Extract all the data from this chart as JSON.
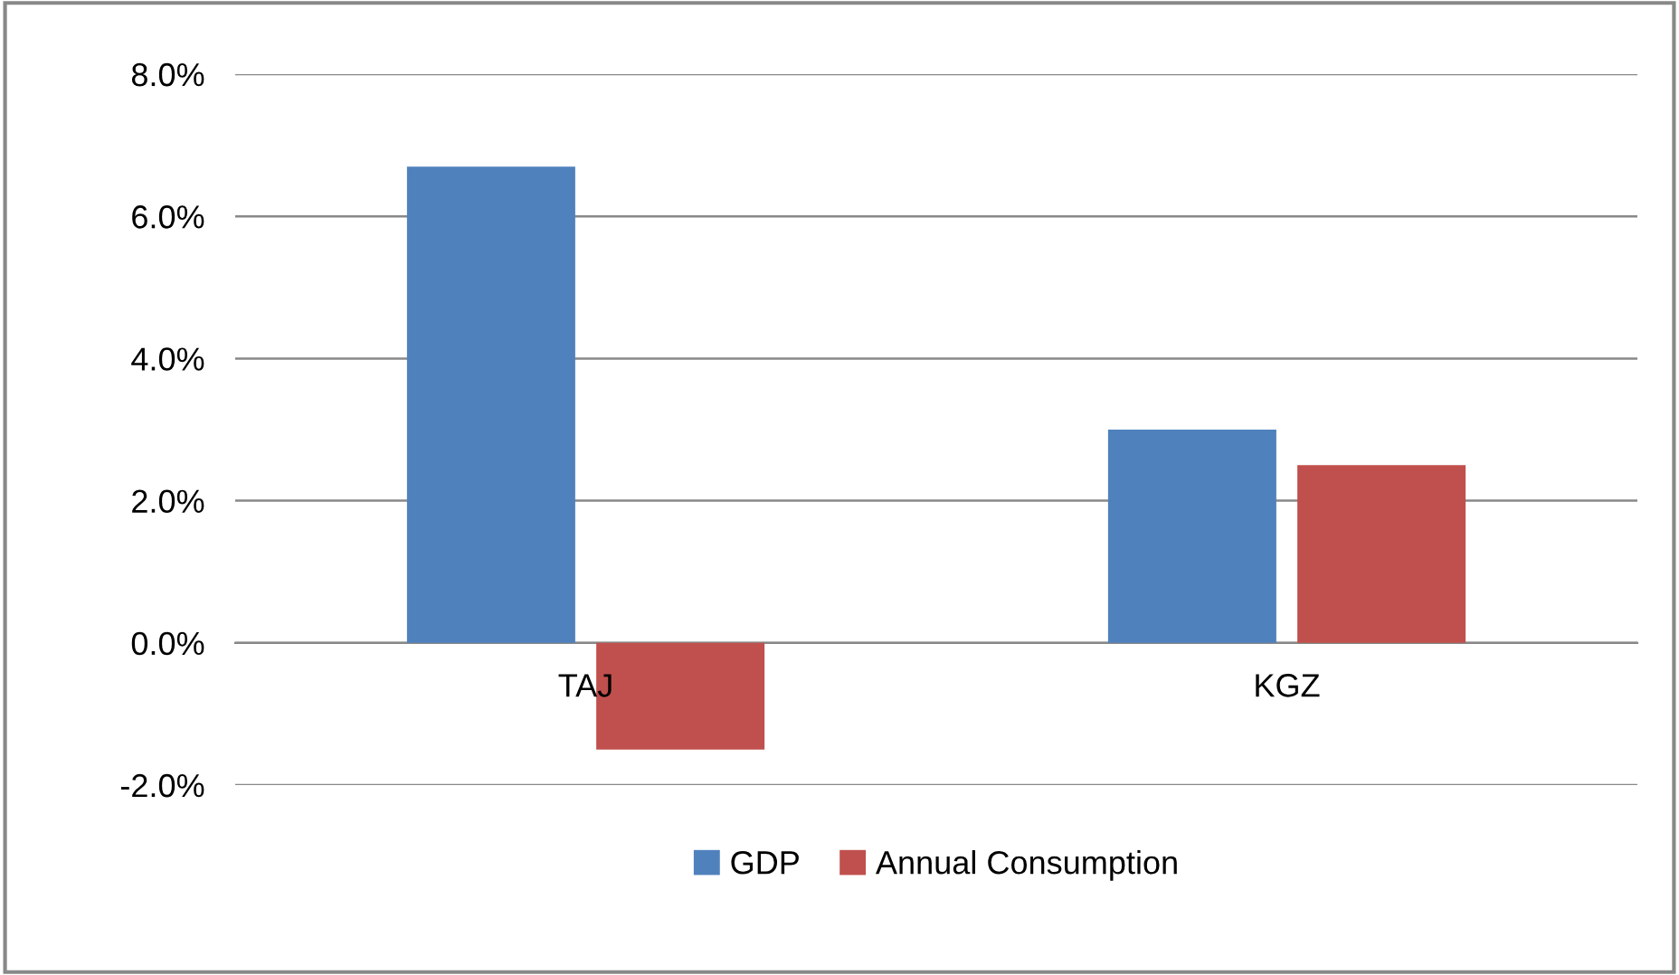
{
  "chart_data": {
    "type": "bar",
    "categories": [
      "TAJ",
      "KGZ"
    ],
    "series": [
      {
        "name": "GDP",
        "color": "#4f81bd",
        "values": [
          6.7,
          3.0
        ]
      },
      {
        "name": "Annual Consumption",
        "color": "#c0504d",
        "values": [
          -1.5,
          2.5
        ]
      }
    ],
    "ylim": [
      -2,
      8
    ],
    "yticks": [
      {
        "value": -2,
        "label": "-2.0%"
      },
      {
        "value": 0,
        "label": "0.0%"
      },
      {
        "value": 2,
        "label": "2.0%"
      },
      {
        "value": 4,
        "label": "4.0%"
      },
      {
        "value": 6,
        "label": "6.0%"
      },
      {
        "value": 8,
        "label": "8.0%"
      }
    ],
    "grid": "y",
    "legend": "bottom"
  }
}
